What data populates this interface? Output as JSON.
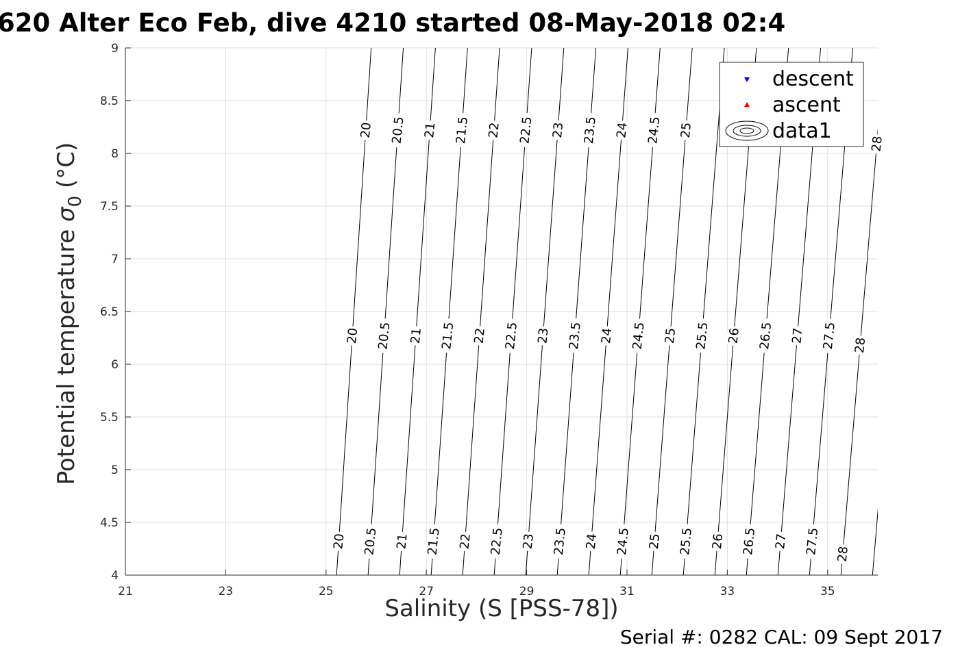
{
  "chart_data": {
    "type": "line",
    "title": "620 Alter Eco Feb, dive 4210 started 08-May-2018 02:4",
    "xlabel": "Salinity (S [PSS-78])",
    "ylabel": "Potential temperature",
    "ylabel_symbol": "σ",
    "ylabel_sub": "0",
    "ylabel_unit": "(°C)",
    "xlim": [
      21,
      36
    ],
    "ylim": [
      4,
      9
    ],
    "grid": true,
    "x_ticks": [
      "21",
      "23",
      "25",
      "27",
      "29",
      "31",
      "33",
      "35"
    ],
    "x_tick_values": [
      21,
      23,
      25,
      27,
      29,
      31,
      33,
      35
    ],
    "y_ticks": [
      "4",
      "4.5",
      "5",
      "5.5",
      "6",
      "6.5",
      "7",
      "7.5",
      "8",
      "8.5",
      "9"
    ],
    "y_tick_values": [
      4,
      4.5,
      5,
      5.5,
      6,
      6.5,
      7,
      7.5,
      8,
      8.5,
      9
    ],
    "legend": {
      "placement": "top-right",
      "entries": [
        {
          "label": "descent",
          "marker": "triangle-down",
          "color": "#0000ff"
        },
        {
          "label": "ascent",
          "marker": "triangle-up",
          "color": "#ff0000"
        },
        {
          "label": "data1",
          "marker": "contour",
          "color": "#000000"
        }
      ]
    },
    "density_contours": {
      "description_levels": "sigma0 isopycnals",
      "levels": [
        20,
        20.5,
        21,
        21.5,
        22,
        22.5,
        23,
        23.5,
        24,
        24.5,
        25,
        25.5,
        26,
        26.5,
        27,
        27.5,
        28,
        28.5
      ],
      "labels": [
        "20",
        "20.5",
        "21",
        "21.5",
        "22",
        "22.5",
        "23",
        "23.5",
        "24",
        "24.5",
        "25",
        "25.5",
        "26",
        "26.5",
        "27",
        "27.5",
        "28",
        ""
      ],
      "salinity_at_t4_base": 25.21,
      "salinity_at_t9_base": 25.9,
      "salinity_step_per_half_unit_t4": 0.6285,
      "salinity_step_per_half_unit_t9": 0.64
    },
    "descent": [],
    "ascent": []
  },
  "footer": {
    "serial": "Serial #: 0282  CAL: 09 Sept 2017"
  }
}
